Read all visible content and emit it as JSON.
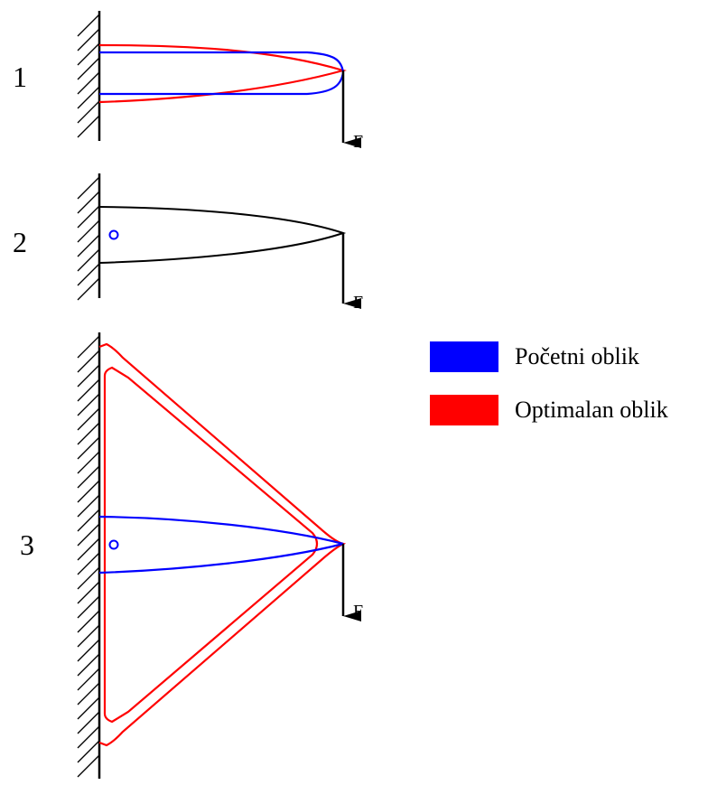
{
  "diagrams": [
    {
      "number": "1",
      "force_label": "F"
    },
    {
      "number": "2",
      "force_label": "F"
    },
    {
      "number": "3",
      "force_label": "F"
    }
  ],
  "legend": {
    "items": [
      {
        "label": "Početni oblik",
        "color": "#0000ff"
      },
      {
        "label": "Optimalan oblik",
        "color": "#ff0000"
      }
    ]
  },
  "colors": {
    "initial": "#0000ff",
    "optimal": "#ff0000",
    "neutral": "#000000"
  }
}
